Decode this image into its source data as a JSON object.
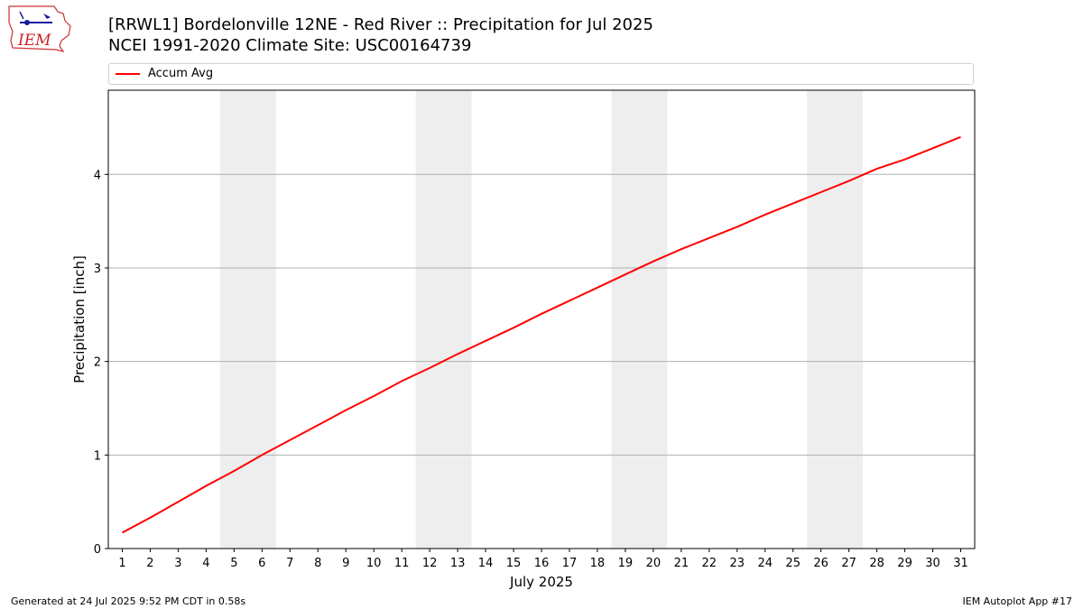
{
  "header": {
    "title_line1": "[RRWL1] Bordelonville 12NE - Red River  :: Precipitation for Jul 2025",
    "title_line2": "NCEI 1991-2020 Climate Site: USC00164739"
  },
  "logo": {
    "text": "IEM",
    "icon": "iem-logo-icon"
  },
  "footer": {
    "left": "Generated at 24 Jul 2025 9:52 PM CDT in 0.58s",
    "right": "IEM Autoplot App #17"
  },
  "colors": {
    "line": "#ff0000",
    "weekend": "#eeeeee",
    "grid": "#b0b0b0"
  },
  "chart_data": {
    "type": "line",
    "xlabel": "July 2025",
    "ylabel": "Precipitation [inch]",
    "xlim": [
      0.5,
      31.5
    ],
    "ylim": [
      0,
      4.9
    ],
    "yticks": [
      0,
      1,
      2,
      3,
      4
    ],
    "xticks": [
      1,
      2,
      3,
      4,
      5,
      6,
      7,
      8,
      9,
      10,
      11,
      12,
      13,
      14,
      15,
      16,
      17,
      18,
      19,
      20,
      21,
      22,
      23,
      24,
      25,
      26,
      27,
      28,
      29,
      30,
      31
    ],
    "grid": "y-major",
    "legend": "top",
    "weekend_bands": [
      [
        4.5,
        6.5
      ],
      [
        11.5,
        13.5
      ],
      [
        18.5,
        20.5
      ],
      [
        25.5,
        27.5
      ]
    ],
    "series": [
      {
        "name": "Accum Avg",
        "x": [
          1,
          2,
          3,
          4,
          5,
          6,
          7,
          8,
          9,
          10,
          11,
          12,
          13,
          14,
          15,
          16,
          17,
          18,
          19,
          20,
          21,
          22,
          23,
          24,
          25,
          26,
          27,
          28,
          29,
          30,
          31
        ],
        "values": [
          0.17,
          0.33,
          0.5,
          0.67,
          0.83,
          1.0,
          1.16,
          1.32,
          1.48,
          1.63,
          1.79,
          1.93,
          2.08,
          2.22,
          2.36,
          2.51,
          2.65,
          2.79,
          2.93,
          3.07,
          3.2,
          3.32,
          3.44,
          3.57,
          3.69,
          3.81,
          3.93,
          4.06,
          4.16,
          4.28,
          4.4
        ]
      }
    ]
  }
}
